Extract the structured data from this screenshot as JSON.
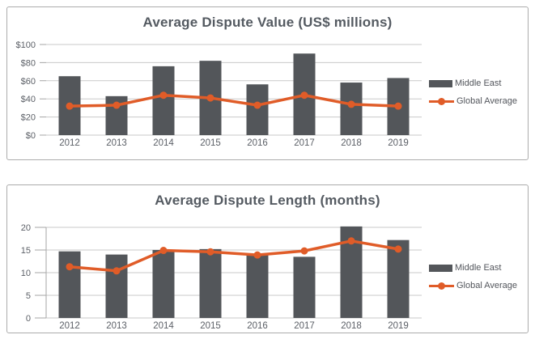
{
  "colors": {
    "bar": "#53565A",
    "line": "#E05C28",
    "gridline": "#C9C9C9",
    "axis": "#A6A6A6",
    "title_text": "#545A61",
    "axis_text": "#5C6067",
    "legend_text": "#53565C",
    "panel_border": "#ACACAC"
  },
  "chart_data": [
    {
      "type": "bar",
      "subtype": "bar+line-combo",
      "title": "Average Dispute Value (US$ millions)",
      "categories": [
        "2012",
        "2013",
        "2014",
        "2015",
        "2016",
        "2017",
        "2018",
        "2019"
      ],
      "series": [
        {
          "name": "Middle East",
          "type": "bar",
          "values": [
            65,
            43,
            76,
            82,
            56,
            90,
            58,
            63
          ]
        },
        {
          "name": "Global Average",
          "type": "line",
          "values": [
            32,
            33,
            44,
            41,
            33,
            44,
            34,
            32
          ]
        }
      ],
      "ylim": [
        0,
        100
      ],
      "yticks": [
        {
          "value": 0,
          "label": "$0"
        },
        {
          "value": 20,
          "label": "$20"
        },
        {
          "value": 40,
          "label": "$40"
        },
        {
          "value": 60,
          "label": "$60"
        },
        {
          "value": 80,
          "label": "$80"
        },
        {
          "value": 100,
          "label": "$100"
        }
      ],
      "grid": "horizontal",
      "legend_position": "right",
      "left_axis_line": false
    },
    {
      "type": "bar",
      "subtype": "bar+line-combo",
      "title": "Average Dispute Length (months)",
      "categories": [
        "2012",
        "2013",
        "2014",
        "2015",
        "2016",
        "2017",
        "2018",
        "2019"
      ],
      "series": [
        {
          "name": "Middle East",
          "type": "bar",
          "values": [
            14.7,
            14.0,
            15.0,
            15.2,
            14.0,
            13.5,
            20.2,
            17.2
          ]
        },
        {
          "name": "Global Average",
          "type": "line",
          "values": [
            11.3,
            10.4,
            14.9,
            14.6,
            13.9,
            14.8,
            17.0,
            15.2
          ]
        }
      ],
      "ylim": [
        0,
        20
      ],
      "yticks": [
        {
          "value": 0,
          "label": "0"
        },
        {
          "value": 5,
          "label": "5"
        },
        {
          "value": 10,
          "label": "10"
        },
        {
          "value": 15,
          "label": "15"
        },
        {
          "value": 20,
          "label": "20"
        }
      ],
      "grid": "horizontal",
      "legend_position": "right",
      "left_axis_line": true
    }
  ]
}
